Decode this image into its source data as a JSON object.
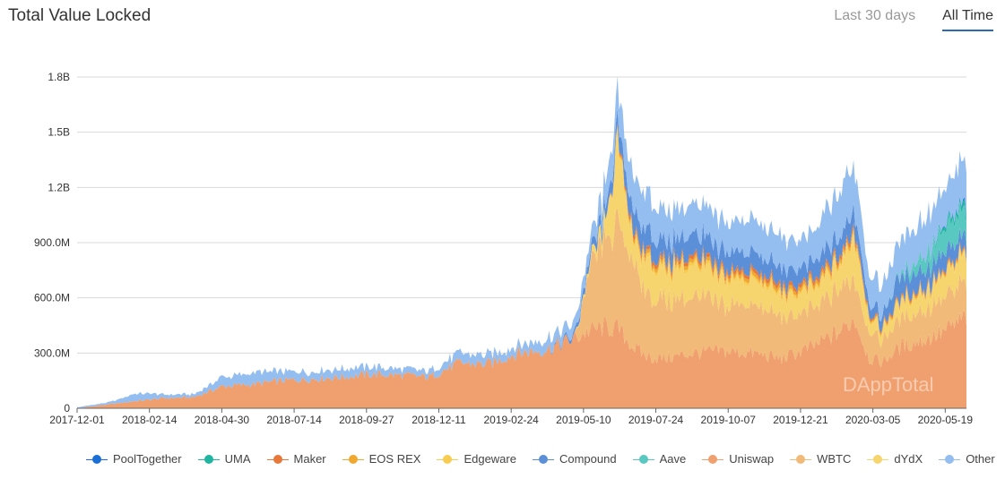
{
  "header": {
    "title": "Total Value Locked",
    "tabs": [
      {
        "label": "Last 30 days",
        "active": false
      },
      {
        "label": "All Time",
        "active": true
      }
    ]
  },
  "watermark": "DAppTotal",
  "chart_data": {
    "type": "area",
    "stacked": true,
    "y_ticks": [
      {
        "value": 0,
        "label": "0"
      },
      {
        "value": 300000000,
        "label": "300.0M"
      },
      {
        "value": 600000000,
        "label": "600.0M"
      },
      {
        "value": 900000000,
        "label": "900.0M"
      },
      {
        "value": 1200000000,
        "label": "1.2B"
      },
      {
        "value": 1500000000,
        "label": "1.5B"
      },
      {
        "value": 1800000000,
        "label": "1.8B"
      }
    ],
    "ylim": [
      0,
      1800000000
    ],
    "x_range": [
      "2017-12-01",
      "2020-06-10"
    ],
    "x_ticks": [
      "2017-12-01",
      "2018-02-14",
      "2018-04-30",
      "2018-07-14",
      "2018-09-27",
      "2018-12-11",
      "2019-02-24",
      "2019-05-10",
      "2019-07-24",
      "2019-10-07",
      "2019-12-21",
      "2020-03-05",
      "2020-05-19"
    ],
    "grid": true,
    "legend_position": "bottom",
    "x": [
      "2017-12-01",
      "2018-01-01",
      "2018-02-01",
      "2018-03-01",
      "2018-04-01",
      "2018-05-01",
      "2018-06-01",
      "2018-07-01",
      "2018-08-01",
      "2018-09-01",
      "2018-10-01",
      "2018-11-01",
      "2018-12-01",
      "2019-01-01",
      "2019-02-01",
      "2019-03-01",
      "2019-04-01",
      "2019-05-01",
      "2019-05-15",
      "2019-06-01",
      "2019-06-15",
      "2019-07-01",
      "2019-07-15",
      "2019-08-01",
      "2019-09-01",
      "2019-10-01",
      "2019-11-01",
      "2019-12-01",
      "2020-01-01",
      "2020-02-01",
      "2020-02-15",
      "2020-03-01",
      "2020-03-15",
      "2020-04-01",
      "2020-05-01",
      "2020-05-20",
      "2020-06-10"
    ],
    "series": [
      {
        "name": "Uniswap",
        "color": "#f0a06e",
        "values": [
          0,
          20000000,
          40000000,
          55000000,
          60000000,
          120000000,
          130000000,
          150000000,
          160000000,
          170000000,
          185000000,
          180000000,
          170000000,
          245000000,
          240000000,
          300000000,
          320000000,
          380000000,
          420000000,
          440000000,
          430000000,
          330000000,
          280000000,
          270000000,
          300000000,
          310000000,
          300000000,
          270000000,
          330000000,
          420000000,
          490000000,
          270000000,
          250000000,
          330000000,
          380000000,
          420000000,
          500000000
        ]
      },
      {
        "name": "WBTC",
        "color": "#f2ba78",
        "values": [
          0,
          0,
          0,
          0,
          0,
          0,
          0,
          0,
          0,
          0,
          0,
          0,
          0,
          0,
          0,
          0,
          0,
          0,
          300000000,
          470000000,
          550000000,
          480000000,
          330000000,
          320000000,
          300000000,
          260000000,
          270000000,
          220000000,
          200000000,
          230000000,
          230000000,
          150000000,
          120000000,
          150000000,
          170000000,
          170000000,
          200000000
        ]
      },
      {
        "name": "dYdX",
        "color": "#f6d56e",
        "values": [
          0,
          0,
          0,
          0,
          0,
          0,
          0,
          0,
          0,
          0,
          0,
          0,
          0,
          0,
          0,
          0,
          0,
          0,
          20000000,
          80000000,
          400000000,
          100000000,
          180000000,
          150000000,
          170000000,
          130000000,
          130000000,
          110000000,
          100000000,
          130000000,
          220000000,
          70000000,
          50000000,
          80000000,
          100000000,
          120000000,
          140000000
        ]
      },
      {
        "name": "Edgeware",
        "color": "#f8cc50",
        "values": [
          0,
          0,
          0,
          0,
          0,
          0,
          0,
          0,
          0,
          0,
          0,
          0,
          0,
          0,
          0,
          0,
          0,
          0,
          0,
          0,
          10000000,
          20000000,
          20000000,
          20000000,
          20000000,
          15000000,
          15000000,
          15000000,
          15000000,
          15000000,
          20000000,
          10000000,
          10000000,
          10000000,
          10000000,
          10000000,
          10000000
        ]
      },
      {
        "name": "EOS REX",
        "color": "#f0a830",
        "values": [
          0,
          0,
          0,
          0,
          0,
          0,
          0,
          0,
          0,
          0,
          0,
          0,
          0,
          0,
          0,
          0,
          0,
          0,
          0,
          0,
          10000000,
          20000000,
          20000000,
          20000000,
          20000000,
          20000000,
          20000000,
          20000000,
          20000000,
          20000000,
          20000000,
          10000000,
          10000000,
          10000000,
          10000000,
          10000000,
          10000000
        ]
      },
      {
        "name": "Maker",
        "color": "#e8783a",
        "values": [
          0,
          0,
          0,
          0,
          0,
          0,
          0,
          0,
          0,
          0,
          0,
          0,
          0,
          0,
          0,
          0,
          0,
          0,
          0,
          0,
          10000000,
          20000000,
          20000000,
          20000000,
          20000000,
          20000000,
          20000000,
          20000000,
          20000000,
          20000000,
          20000000,
          10000000,
          10000000,
          10000000,
          10000000,
          10000000,
          10000000
        ]
      },
      {
        "name": "Compound",
        "color": "#5b8fd8",
        "values": [
          0,
          0,
          0,
          0,
          0,
          0,
          0,
          0,
          0,
          0,
          0,
          0,
          0,
          0,
          0,
          0,
          0,
          20000000,
          40000000,
          60000000,
          80000000,
          110000000,
          110000000,
          100000000,
          120000000,
          100000000,
          100000000,
          90000000,
          90000000,
          100000000,
          100000000,
          60000000,
          60000000,
          120000000,
          100000000,
          90000000,
          80000000
        ]
      },
      {
        "name": "Aave",
        "color": "#58c8c0",
        "values": [
          0,
          0,
          0,
          0,
          0,
          0,
          0,
          0,
          0,
          0,
          0,
          0,
          0,
          0,
          0,
          0,
          0,
          0,
          0,
          0,
          0,
          0,
          0,
          0,
          0,
          0,
          0,
          0,
          0,
          0,
          0,
          0,
          0,
          10000000,
          80000000,
          130000000,
          150000000
        ]
      },
      {
        "name": "UMA",
        "color": "#1fb5a0",
        "values": [
          0,
          0,
          0,
          0,
          0,
          0,
          0,
          0,
          0,
          0,
          0,
          0,
          0,
          0,
          0,
          0,
          0,
          0,
          0,
          0,
          0,
          0,
          0,
          0,
          0,
          0,
          0,
          0,
          0,
          0,
          0,
          0,
          0,
          0,
          10000000,
          20000000,
          30000000
        ]
      },
      {
        "name": "PoolTogether",
        "color": "#1a6fd6",
        "values": [
          0,
          0,
          0,
          0,
          0,
          0,
          0,
          0,
          0,
          0,
          0,
          0,
          0,
          0,
          0,
          0,
          0,
          0,
          0,
          0,
          0,
          0,
          0,
          0,
          0,
          0,
          0,
          0,
          0,
          0,
          0,
          0,
          0,
          0,
          0,
          5000000,
          10000000
        ]
      },
      {
        "name": "Other",
        "color": "#94bdf0",
        "values": [
          5000000,
          10000000,
          40000000,
          20000000,
          15000000,
          50000000,
          60000000,
          50000000,
          40000000,
          45000000,
          40000000,
          35000000,
          30000000,
          50000000,
          50000000,
          40000000,
          60000000,
          60000000,
          70000000,
          120000000,
          160000000,
          190000000,
          200000000,
          160000000,
          170000000,
          160000000,
          180000000,
          170000000,
          160000000,
          240000000,
          260000000,
          150000000,
          160000000,
          190000000,
          200000000,
          200000000,
          250000000
        ]
      }
    ]
  },
  "legend": [
    {
      "name": "PoolTogether",
      "color": "#1a6fd6"
    },
    {
      "name": "UMA",
      "color": "#1fb5a0"
    },
    {
      "name": "Maker",
      "color": "#e8783a"
    },
    {
      "name": "EOS REX",
      "color": "#f0a830"
    },
    {
      "name": "Edgeware",
      "color": "#f8cc50"
    },
    {
      "name": "Compound",
      "color": "#5b8fd8"
    },
    {
      "name": "Aave",
      "color": "#58c8c0"
    },
    {
      "name": "Uniswap",
      "color": "#f0a06e"
    },
    {
      "name": "WBTC",
      "color": "#f2ba78"
    },
    {
      "name": "dYdX",
      "color": "#f6d56e"
    },
    {
      "name": "Other",
      "color": "#94bdf0"
    }
  ]
}
